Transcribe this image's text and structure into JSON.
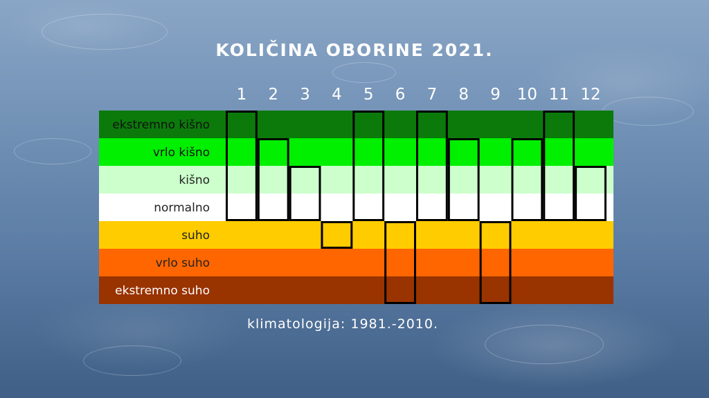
{
  "title": "KOLIČINA OBORINE 2021.",
  "footer": "klimatologija: 1981.-2010.",
  "chart_data": {
    "type": "table",
    "title": "KOLIČINA OBORINE 2021.",
    "x": [
      "1",
      "2",
      "3",
      "4",
      "5",
      "6",
      "7",
      "8",
      "9",
      "10",
      "11",
      "12"
    ],
    "categories": [
      "ekstremno kišno",
      "vrlo kišno",
      "kišno",
      "normalno",
      "suho",
      "vrlo suho",
      "ekstremno suho"
    ],
    "category_colors": [
      "#0b7a0b",
      "#00f000",
      "#ccffcc",
      "#ffffff",
      "#ffcc00",
      "#ff6600",
      "#993300"
    ],
    "category_text_colors": [
      "#111111",
      "#111111",
      "#222222",
      "#222222",
      "#222222",
      "#222222",
      "#ffffff"
    ],
    "values": [
      "ekstremno kišno",
      "vrlo kišno",
      "kišno",
      "suho",
      "ekstremno kišno",
      "ekstremno suho",
      "ekstremno kišno",
      "vrlo kišno",
      "ekstremno suho",
      "vrlo kišno",
      "ekstremno kišno",
      "kišno"
    ],
    "note": "klimatologija: 1981.-2010."
  }
}
